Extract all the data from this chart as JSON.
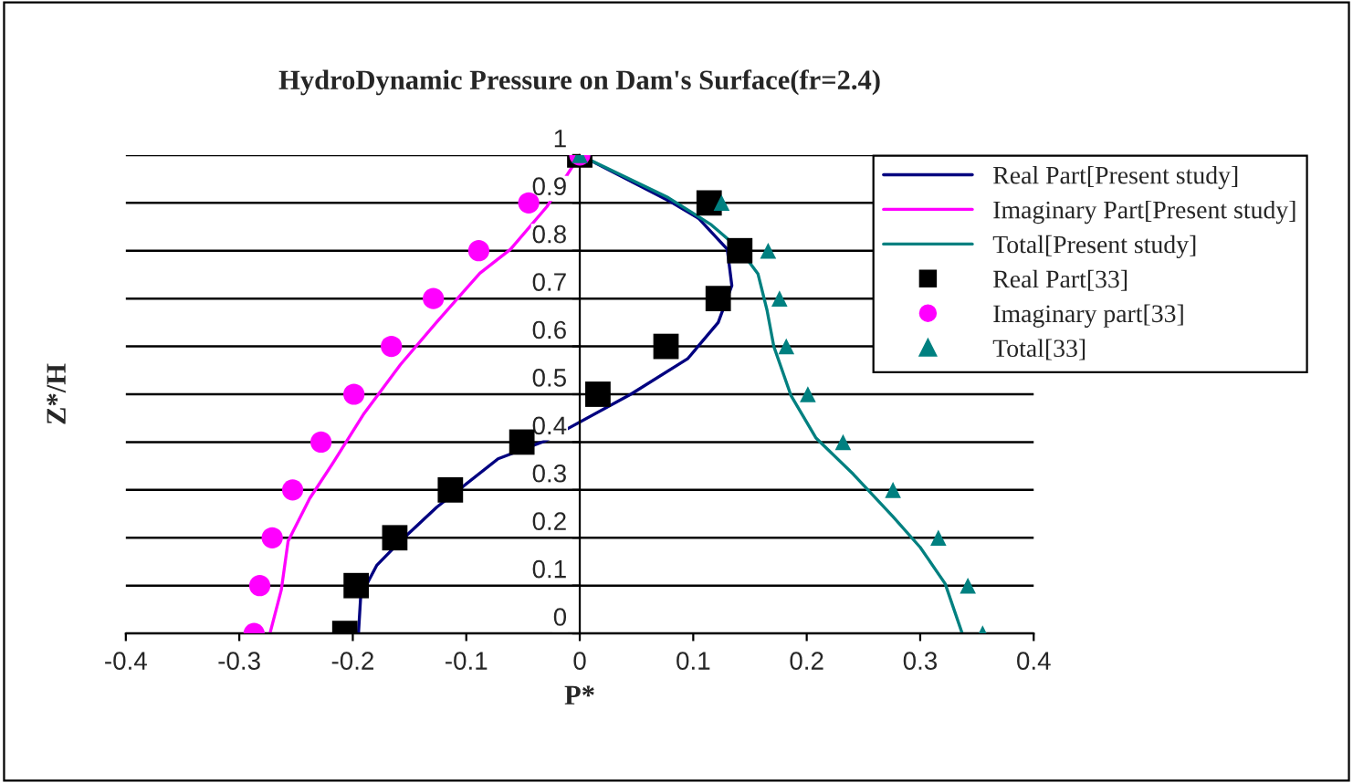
{
  "chart_data": {
    "type": "line",
    "title": "HydroDynamic Pressure on Dam's Surface(fr=2.4)",
    "xlabel": "P*",
    "ylabel": "Z*/H",
    "xlim": [
      -0.4,
      0.4
    ],
    "xticks": [
      -0.4,
      -0.3,
      -0.2,
      -0.1,
      0,
      0.1,
      0.2,
      0.3,
      0.4
    ],
    "ylim": [
      0,
      1
    ],
    "yticks": [
      0,
      0.1,
      0.2,
      0.3,
      0.4,
      0.5,
      0.6,
      0.7,
      0.8,
      0.9,
      1
    ],
    "grid": "y",
    "legend": "top right",
    "series": [
      {
        "name": "Real Part[Present study]",
        "type": "line",
        "color": "#000080",
        "marker": "none",
        "line_style": "solid",
        "x": [
          0,
          0.078,
          0.105,
          0.13,
          0.134,
          0.122,
          0.095,
          0.045,
          -0.03,
          -0.072,
          -0.126,
          -0.158,
          -0.179,
          -0.193,
          -0.195
        ],
        "values": [
          1,
          0.905,
          0.867,
          0.803,
          0.727,
          0.65,
          0.574,
          0.5,
          0.403,
          0.365,
          0.264,
          0.193,
          0.142,
          0.079,
          0
        ]
      },
      {
        "name": "Imaginary Part[Present study]",
        "type": "line",
        "color": "#ff00ff",
        "marker": "none",
        "line_style": "solid",
        "x": [
          0,
          -0.029,
          -0.061,
          -0.088,
          -0.126,
          -0.158,
          -0.19,
          -0.217,
          -0.238,
          -0.257,
          -0.263,
          -0.273
        ],
        "values": [
          1,
          0.892,
          0.803,
          0.753,
          0.651,
          0.562,
          0.46,
          0.358,
          0.282,
          0.193,
          0.091,
          0
        ]
      },
      {
        "name": "Total[Present study]",
        "type": "line",
        "color": "#008080",
        "marker": "none",
        "line_style": "solid",
        "x": [
          0,
          0.078,
          0.116,
          0.141,
          0.157,
          0.165,
          0.171,
          0.186,
          0.208,
          0.241,
          0.276,
          0.3,
          0.322,
          0.337
        ],
        "values": [
          1,
          0.911,
          0.854,
          0.803,
          0.752,
          0.676,
          0.6,
          0.498,
          0.409,
          0.333,
          0.244,
          0.18,
          0.104,
          0
        ]
      },
      {
        "name": "Real Part[33]",
        "type": "scatter",
        "color": "#000000",
        "marker": "square",
        "x": [
          -0.207,
          -0.197,
          -0.163,
          -0.114,
          -0.051,
          0.016,
          0.076,
          0.122,
          0.141,
          0.114,
          0
        ],
        "values": [
          0,
          0.1,
          0.2,
          0.3,
          0.4,
          0.5,
          0.6,
          0.7,
          0.8,
          0.9,
          1
        ]
      },
      {
        "name": "Imaginary part[33]",
        "type": "scatter",
        "color": "#ff00ff",
        "marker": "circle",
        "x": [
          -0.287,
          -0.282,
          -0.271,
          -0.253,
          -0.228,
          -0.199,
          -0.166,
          -0.129,
          -0.089,
          -0.045,
          0
        ],
        "values": [
          0,
          0.1,
          0.2,
          0.3,
          0.4,
          0.5,
          0.6,
          0.7,
          0.8,
          0.9,
          1
        ]
      },
      {
        "name": "Total[33]",
        "type": "scatter",
        "color": "#008080",
        "marker": "triangle",
        "x": [
          0.355,
          0.342,
          0.316,
          0.276,
          0.232,
          0.201,
          0.182,
          0.176,
          0.166,
          0.125,
          0
        ],
        "values": [
          0,
          0.1,
          0.2,
          0.3,
          0.4,
          0.5,
          0.6,
          0.7,
          0.8,
          0.9,
          1
        ]
      }
    ]
  }
}
